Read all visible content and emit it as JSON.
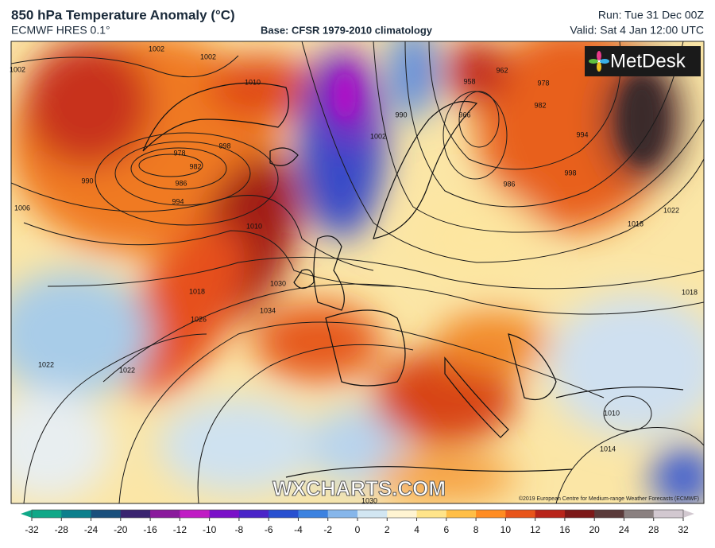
{
  "header": {
    "title": "850 hPa Temperature Anomaly (°C)",
    "model": "ECMWF HRES 0.1°",
    "base": "Base: CFSR 1979-2010 climatology",
    "run": "Run: Tue 31 Dec 00Z",
    "valid": "Valid: Sat 4 Jan 12:00 UTC"
  },
  "map": {
    "logo": "MetDesk",
    "watermark": "WXCHARTS.COM",
    "copyright": "©2019 European Centre for Medium-range Weather Forecasts (ECMWF)"
  },
  "isobars": {
    "labels": [
      "1002",
      "1002",
      "1002",
      "1010",
      "978",
      "982",
      "986",
      "990",
      "994",
      "998",
      "1006",
      "1010",
      "1018",
      "1026",
      "1030",
      "1034",
      "1022",
      "1022",
      "958",
      "962",
      "966",
      "986",
      "982",
      "978",
      "994",
      "998",
      "1018",
      "1022",
      "1018",
      "1010",
      "1014",
      "1002",
      "990",
      "1030"
    ]
  },
  "colorbar": {
    "ticks": [
      -32,
      -28,
      -24,
      -20,
      -16,
      -12,
      -10,
      -8,
      -6,
      -4,
      -2,
      0,
      2,
      4,
      6,
      8,
      10,
      12,
      16,
      20,
      24,
      28,
      32
    ],
    "colors": [
      "#10a888",
      "#0c7f8c",
      "#1a4f7c",
      "#3a2470",
      "#8a1a9c",
      "#c01cc4",
      "#7a10c8",
      "#4a24c8",
      "#2850d0",
      "#3c82e0",
      "#86b6ea",
      "#d2e6f2",
      "#fff4d2",
      "#ffe48a",
      "#ffbe46",
      "#ff8c22",
      "#e8541a",
      "#b8241a",
      "#7c1818",
      "#5a3a3a",
      "#8a8080",
      "#d2c8d0"
    ]
  }
}
